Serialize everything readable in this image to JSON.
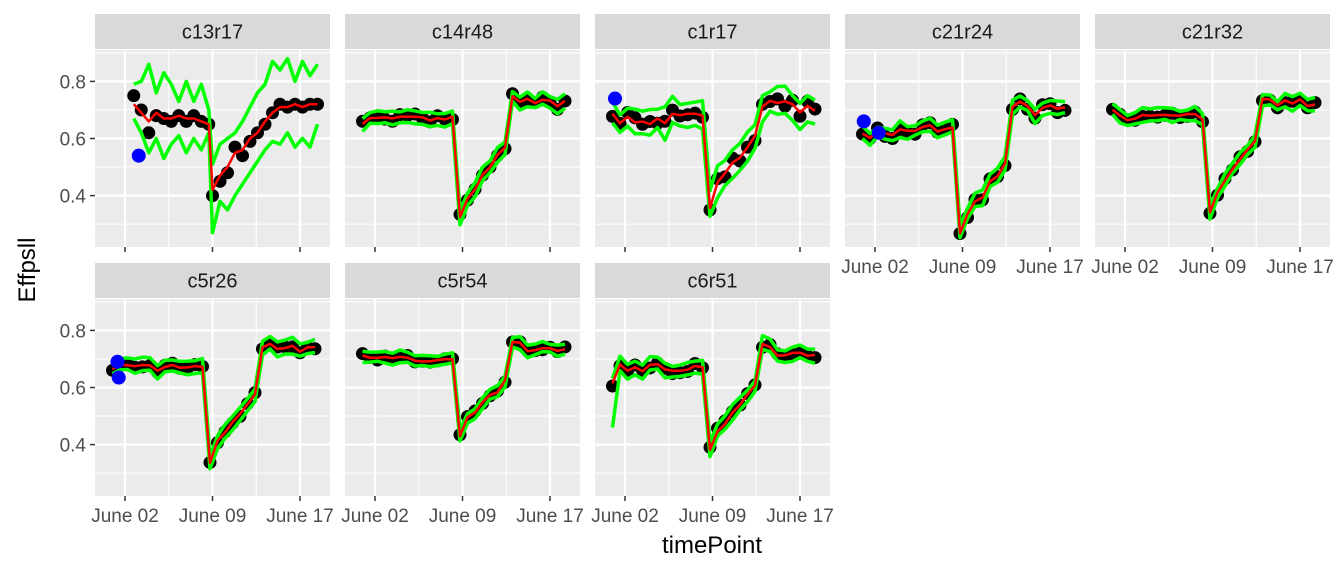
{
  "chart_data": {
    "type": "line",
    "facet_layout": {
      "ncol": 5,
      "nrow": 2
    },
    "xlabel": "timePoint",
    "ylabel": "Effpsll",
    "x_ticks": [
      "June 02",
      "June 09",
      "June 17"
    ],
    "y_ticks": [
      "0.4",
      "0.6",
      "0.8"
    ],
    "y_tick_values": [
      0.4,
      0.6,
      0.8
    ],
    "ylim": [
      0.22,
      0.91
    ],
    "xlim_days": [
      -2.4,
      16.4
    ],
    "x_tick_days": [
      0,
      7,
      14
    ],
    "style": {
      "background": "#ebebeb",
      "strip_fill": "#d9d9d9",
      "grid_color": "#ffffff",
      "point_color": "#000000",
      "outlier_color": "#0000ff",
      "band_color": "#00ff00",
      "mean_color": "#ff0000",
      "point_radius": 6.5,
      "outlier_radius": 7,
      "band_width": 3.5,
      "line_width": 2.5
    },
    "facets": [
      {
        "label": "c13r17",
        "show_x_axis": false,
        "points": [
          [
            0.7,
            0.75
          ],
          [
            1.3,
            0.7
          ],
          [
            1.9,
            0.62
          ],
          [
            2.5,
            0.68
          ],
          [
            3.1,
            0.67
          ],
          [
            3.7,
            0.66
          ],
          [
            4.3,
            0.68
          ],
          [
            4.9,
            0.66
          ],
          [
            5.5,
            0.68
          ],
          [
            6.1,
            0.66
          ],
          [
            6.7,
            0.65
          ],
          [
            7.0,
            0.4
          ],
          [
            7.6,
            0.45
          ],
          [
            8.2,
            0.48
          ],
          [
            8.8,
            0.57
          ],
          [
            9.4,
            0.54
          ],
          [
            10.0,
            0.59
          ],
          [
            10.6,
            0.62
          ],
          [
            11.2,
            0.65
          ],
          [
            11.8,
            0.69
          ],
          [
            12.4,
            0.72
          ],
          [
            13.0,
            0.71
          ],
          [
            13.6,
            0.72
          ],
          [
            14.2,
            0.71
          ],
          [
            14.8,
            0.72
          ],
          [
            15.4,
            0.72
          ]
        ],
        "outliers": [
          [
            1.1,
            0.54
          ]
        ],
        "mean": [
          [
            0.7,
            0.72
          ],
          [
            1.3,
            0.69
          ],
          [
            1.9,
            0.66
          ],
          [
            2.5,
            0.69
          ],
          [
            3.1,
            0.67
          ],
          [
            3.7,
            0.67
          ],
          [
            4.3,
            0.68
          ],
          [
            4.9,
            0.67
          ],
          [
            5.5,
            0.67
          ],
          [
            6.1,
            0.66
          ],
          [
            6.7,
            0.65
          ],
          [
            7.0,
            0.42
          ],
          [
            7.6,
            0.47
          ],
          [
            8.2,
            0.5
          ],
          [
            8.8,
            0.55
          ],
          [
            9.4,
            0.56
          ],
          [
            10.0,
            0.6
          ],
          [
            10.6,
            0.62
          ],
          [
            11.2,
            0.66
          ],
          [
            11.8,
            0.69
          ],
          [
            12.4,
            0.71
          ],
          [
            13.0,
            0.71
          ],
          [
            13.6,
            0.72
          ],
          [
            14.2,
            0.71
          ],
          [
            14.8,
            0.72
          ],
          [
            15.4,
            0.72
          ]
        ],
        "band_upper": [
          [
            0.7,
            0.79
          ],
          [
            1.3,
            0.8
          ],
          [
            1.9,
            0.86
          ],
          [
            2.5,
            0.76
          ],
          [
            3.1,
            0.83
          ],
          [
            3.7,
            0.79
          ],
          [
            4.3,
            0.73
          ],
          [
            4.9,
            0.8
          ],
          [
            5.5,
            0.73
          ],
          [
            6.1,
            0.79
          ],
          [
            6.7,
            0.7
          ],
          [
            7.0,
            0.51
          ],
          [
            7.6,
            0.58
          ],
          [
            8.2,
            0.6
          ],
          [
            8.8,
            0.62
          ],
          [
            9.4,
            0.66
          ],
          [
            10.0,
            0.71
          ],
          [
            10.6,
            0.76
          ],
          [
            11.2,
            0.79
          ],
          [
            11.8,
            0.87
          ],
          [
            12.4,
            0.84
          ],
          [
            13.0,
            0.88
          ],
          [
            13.6,
            0.8
          ],
          [
            14.2,
            0.87
          ],
          [
            14.8,
            0.82
          ],
          [
            15.4,
            0.86
          ]
        ],
        "band_lower": [
          [
            0.7,
            0.67
          ],
          [
            1.3,
            0.62
          ],
          [
            1.9,
            0.55
          ],
          [
            2.5,
            0.6
          ],
          [
            3.1,
            0.53
          ],
          [
            3.7,
            0.58
          ],
          [
            4.3,
            0.61
          ],
          [
            4.9,
            0.55
          ],
          [
            5.5,
            0.6
          ],
          [
            6.1,
            0.56
          ],
          [
            6.7,
            0.62
          ],
          [
            7.0,
            0.27
          ],
          [
            7.6,
            0.38
          ],
          [
            8.2,
            0.35
          ],
          [
            8.8,
            0.4
          ],
          [
            9.4,
            0.44
          ],
          [
            10.0,
            0.48
          ],
          [
            10.6,
            0.52
          ],
          [
            11.2,
            0.56
          ],
          [
            11.8,
            0.59
          ],
          [
            12.4,
            0.58
          ],
          [
            13.0,
            0.62
          ],
          [
            13.6,
            0.57
          ],
          [
            14.2,
            0.6
          ],
          [
            14.8,
            0.57
          ],
          [
            15.4,
            0.65
          ]
        ]
      },
      {
        "label": "c14r48",
        "show_x_axis": false,
        "series_profile": "A",
        "params": {
          "baseline": 0.665,
          "drop": 0.32,
          "post_ramp_end": 0.6,
          "plateau": 0.725,
          "noise": 0.014,
          "band": 0.022
        },
        "outliers": []
      },
      {
        "label": "c1r17",
        "show_x_axis": false,
        "series_profile": "A",
        "params": {
          "baseline": 0.67,
          "start": 0.67,
          "drop": 0.37,
          "post_ramp_end": 0.63,
          "plateau": 0.71,
          "noise": 0.022,
          "band": 0.045
        },
        "outliers": [
          [
            -0.8,
            0.74
          ]
        ]
      },
      {
        "label": "c21r24",
        "show_x_axis": true,
        "series_profile": "B",
        "params": {
          "baseline": 0.63,
          "start": 0.6,
          "drop": 0.27,
          "post_ramp_end": 0.53,
          "plateau": 0.7,
          "noise": 0.018,
          "band": 0.022
        },
        "outliers": [
          [
            -0.9,
            0.66
          ],
          [
            0.3,
            0.62
          ]
        ]
      },
      {
        "label": "c21r32",
        "show_x_axis": true,
        "series_profile": "A",
        "params": {
          "baseline": 0.675,
          "start": 0.69,
          "drop": 0.35,
          "post_ramp_end": 0.62,
          "plateau": 0.725,
          "noise": 0.012,
          "band": 0.02
        },
        "outliers": []
      },
      {
        "label": "c5r26",
        "show_x_axis": true,
        "series_profile": "A",
        "params": {
          "baseline": 0.67,
          "start": 0.665,
          "drop": 0.34,
          "post_ramp_end": 0.62,
          "plateau": 0.735,
          "noise": 0.012,
          "band": 0.022
        },
        "outliers": [
          [
            -0.6,
            0.69
          ],
          [
            -0.5,
            0.635
          ]
        ]
      },
      {
        "label": "c5r54",
        "show_x_axis": true,
        "series_profile": "A",
        "params": {
          "baseline": 0.7,
          "start": 0.71,
          "drop": 0.43,
          "post_ramp_end": 0.64,
          "plateau": 0.735,
          "noise": 0.01,
          "band": 0.018
        },
        "outliers": []
      },
      {
        "label": "c6r51",
        "show_x_axis": true,
        "series_profile": "A",
        "params": {
          "baseline": 0.67,
          "start": 0.61,
          "drop": 0.38,
          "post_ramp_end": 0.63,
          "plateau": 0.725,
          "noise": 0.015,
          "band": 0.022
        },
        "outliers": [],
        "band_lower_first": 0.46
      }
    ]
  }
}
